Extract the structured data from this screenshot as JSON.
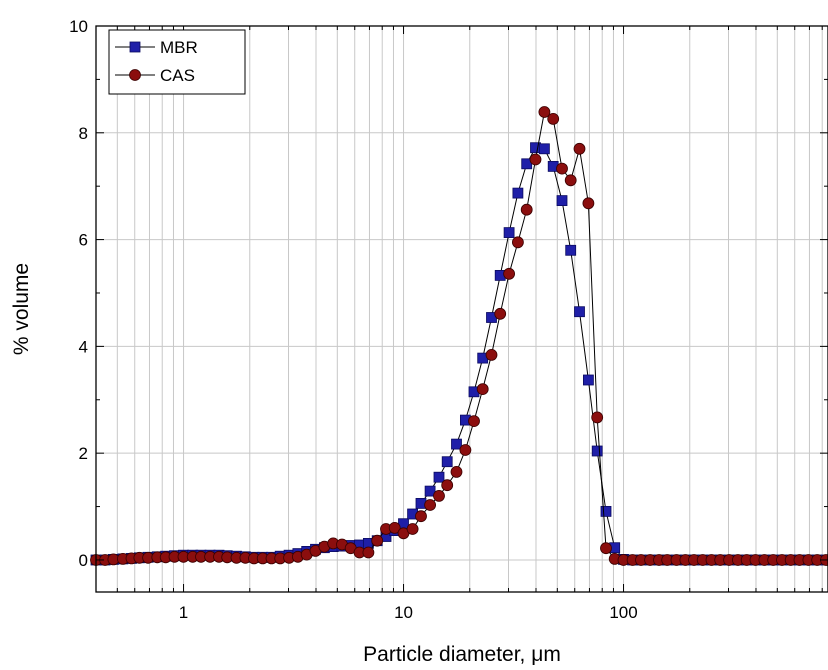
{
  "chart_data": {
    "type": "scatter",
    "title": "",
    "xlabel": "Particle diameter, μm",
    "ylabel": "% volume",
    "xscale": "log",
    "xlim": [
      0.4,
      850
    ],
    "ylim": [
      -0.6,
      10
    ],
    "x_ticks": [
      1,
      10,
      100
    ],
    "x_tick_labels": [
      "1",
      "10",
      "100"
    ],
    "y_ticks": [
      0,
      2,
      4,
      6,
      8,
      10
    ],
    "y_tick_labels": [
      "0",
      "2",
      "4",
      "6",
      "8",
      "10"
    ],
    "grid": true,
    "legend_position": "top-left",
    "x": [
      0.4,
      0.44,
      0.48,
      0.53,
      0.58,
      0.63,
      0.69,
      0.76,
      0.83,
      0.91,
      1.0,
      1.1,
      1.2,
      1.32,
      1.45,
      1.58,
      1.74,
      1.91,
      2.09,
      2.29,
      2.51,
      2.75,
      3.02,
      3.31,
      3.63,
      3.98,
      4.37,
      4.79,
      5.25,
      5.75,
      6.31,
      6.92,
      7.59,
      8.32,
      9.12,
      10.0,
      11.0,
      12.0,
      13.2,
      14.5,
      15.8,
      17.4,
      19.1,
      20.9,
      22.9,
      25.1,
      27.5,
      30.2,
      33.1,
      36.3,
      39.8,
      43.7,
      47.9,
      52.5,
      57.5,
      63.1,
      69.2,
      75.9,
      83.2,
      91.2,
      100,
      110,
      120,
      132,
      145,
      158,
      174,
      191,
      209,
      229,
      251,
      275,
      302,
      331,
      363,
      398,
      437,
      479,
      525,
      575,
      631,
      692,
      759,
      832
    ],
    "series": [
      {
        "name": "MBR",
        "marker": "square",
        "color": "#1f1fa8",
        "values": [
          0,
          0,
          0.01,
          0.02,
          0.03,
          0.04,
          0.05,
          0.06,
          0.07,
          0.08,
          0.09,
          0.09,
          0.09,
          0.09,
          0.09,
          0.08,
          0.07,
          0.06,
          0.05,
          0.05,
          0.05,
          0.07,
          0.09,
          0.12,
          0.16,
          0.2,
          0.23,
          0.25,
          0.26,
          0.27,
          0.28,
          0.31,
          0.36,
          0.44,
          0.55,
          0.68,
          0.86,
          1.06,
          1.29,
          1.55,
          1.84,
          2.17,
          2.62,
          3.15,
          3.78,
          4.54,
          5.33,
          6.13,
          6.87,
          7.42,
          7.72,
          7.7,
          7.37,
          6.73,
          5.8,
          4.65,
          3.37,
          2.04,
          0.91,
          0.23,
          0.01,
          0,
          0,
          0,
          0,
          0,
          0,
          0,
          0,
          0,
          0,
          0,
          0,
          0,
          0,
          0,
          0,
          0,
          0,
          0,
          0,
          0,
          0,
          0
        ]
      },
      {
        "name": "CAS",
        "marker": "circle",
        "color": "#8b0e0e",
        "values": [
          0,
          0,
          0.01,
          0.02,
          0.03,
          0.04,
          0.04,
          0.05,
          0.05,
          0.06,
          0.06,
          0.06,
          0.06,
          0.06,
          0.06,
          0.05,
          0.04,
          0.04,
          0.03,
          0.03,
          0.03,
          0.03,
          0.04,
          0.06,
          0.1,
          0.17,
          0.25,
          0.31,
          0.29,
          0.22,
          0.14,
          0.14,
          0.36,
          0.58,
          0.6,
          0.5,
          0.58,
          0.82,
          1.03,
          1.2,
          1.4,
          1.65,
          2.06,
          2.6,
          3.2,
          3.84,
          4.61,
          5.36,
          5.95,
          6.56,
          7.5,
          8.39,
          8.26,
          7.33,
          7.11,
          7.7,
          6.68,
          2.67,
          0.22,
          0.02,
          0,
          0,
          0,
          0,
          0,
          0,
          0,
          0,
          0,
          0,
          0,
          0,
          0,
          0,
          0,
          0,
          0,
          0,
          0,
          0,
          0,
          0,
          0,
          0
        ]
      }
    ]
  }
}
